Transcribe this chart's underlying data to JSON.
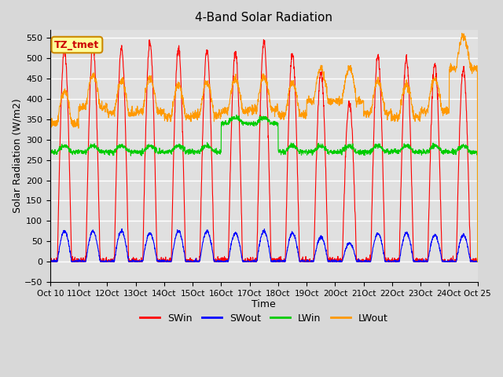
{
  "title": "4-Band Solar Radiation",
  "xlabel": "Time",
  "ylabel": "Solar Radiation (W/m2)",
  "ylim": [
    -50,
    570
  ],
  "yticks": [
    -50,
    0,
    50,
    100,
    150,
    200,
    250,
    300,
    350,
    400,
    450,
    500,
    550
  ],
  "colors": {
    "SWin": "#ff0000",
    "SWout": "#0000ff",
    "LWin": "#00cc00",
    "LWout": "#ff9900"
  },
  "annotation_text": "TZ_tmet",
  "annotation_color": "#cc0000",
  "annotation_bg": "#ffff99",
  "annotation_border": "#cc8800",
  "bg_color": "#e8e8e8",
  "plot_bg_color": "#e0e0e0",
  "grid_color": "#ffffff",
  "n_days": 15,
  "hours_per_day": 24,
  "start_day": 10
}
